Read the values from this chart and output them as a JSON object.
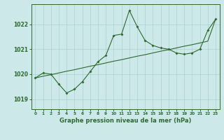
{
  "xlabel": "Graphe pression niveau de la mer (hPa)",
  "ylim": [
    1018.6,
    1022.8
  ],
  "xlim": [
    -0.5,
    23.5
  ],
  "yticks": [
    1019,
    1020,
    1021,
    1022
  ],
  "xticks": [
    0,
    1,
    2,
    3,
    4,
    5,
    6,
    7,
    8,
    9,
    10,
    11,
    12,
    13,
    14,
    15,
    16,
    17,
    18,
    19,
    20,
    21,
    22,
    23
  ],
  "line_color": "#2d6a2d",
  "bg_color": "#cce8e8",
  "grid_color": "#aad0d0",
  "series_straight_x": [
    0,
    1,
    2,
    3,
    4,
    5,
    6,
    7,
    8,
    9,
    10,
    11,
    12,
    13,
    14,
    15,
    16,
    17,
    18,
    19,
    20,
    21,
    22,
    23
  ],
  "series_straight_y": [
    1019.85,
    1019.92,
    1019.98,
    1020.05,
    1020.12,
    1020.18,
    1020.25,
    1020.32,
    1020.38,
    1020.45,
    1020.52,
    1020.58,
    1020.65,
    1020.72,
    1020.78,
    1020.85,
    1020.92,
    1020.98,
    1021.05,
    1021.12,
    1021.18,
    1021.25,
    1021.32,
    1022.2
  ],
  "series_jagged_x": [
    0,
    1,
    2,
    3,
    4,
    5,
    6,
    7,
    8,
    9,
    10,
    11,
    12,
    13,
    14,
    15,
    16,
    17,
    18,
    19,
    20,
    21,
    22,
    23
  ],
  "series_jagged_y": [
    1019.85,
    1020.05,
    1020.0,
    1019.6,
    1019.25,
    1019.4,
    1019.7,
    1020.1,
    1020.5,
    1020.75,
    1021.55,
    1021.6,
    1022.55,
    1021.9,
    1021.35,
    1021.15,
    1021.05,
    1021.0,
    1020.85,
    1020.8,
    1020.85,
    1021.0,
    1021.75,
    1022.2
  ]
}
